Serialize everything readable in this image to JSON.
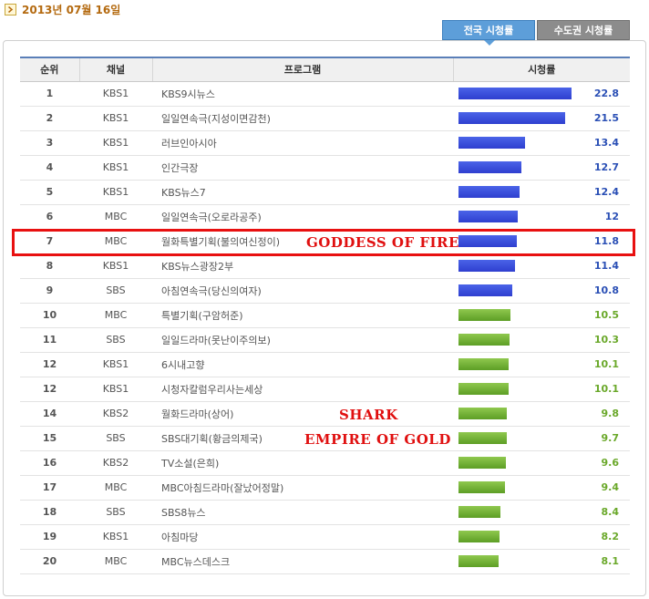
{
  "date": "2013년 07월 16일",
  "tabs": [
    {
      "label": "전국 시청률",
      "active": true
    },
    {
      "label": "수도권 시청률",
      "active": false
    }
  ],
  "columns": {
    "rank": "순위",
    "channel": "채널",
    "program": "프로그램",
    "rating": "시청률"
  },
  "rows": [
    {
      "rank": "1",
      "channel": "KBS1",
      "program": "KBS9시뉴스",
      "rating": "22.8"
    },
    {
      "rank": "2",
      "channel": "KBS1",
      "program": "일일연속극(지성이면감천)",
      "rating": "21.5"
    },
    {
      "rank": "3",
      "channel": "KBS1",
      "program": "러브인아시아",
      "rating": "13.4"
    },
    {
      "rank": "4",
      "channel": "KBS1",
      "program": "인간극장",
      "rating": "12.7"
    },
    {
      "rank": "5",
      "channel": "KBS1",
      "program": "KBS뉴스7",
      "rating": "12.4"
    },
    {
      "rank": "6",
      "channel": "MBC",
      "program": "일일연속극(오로라공주)",
      "rating": "12"
    },
    {
      "rank": "7",
      "channel": "MBC",
      "program": "월화특별기획(불의여신정이)",
      "rating": "11.8"
    },
    {
      "rank": "8",
      "channel": "KBS1",
      "program": "KBS뉴스광장2부",
      "rating": "11.4"
    },
    {
      "rank": "9",
      "channel": "SBS",
      "program": "아침연속극(당신의여자)",
      "rating": "10.8"
    },
    {
      "rank": "10",
      "channel": "MBC",
      "program": "특별기획(구암허준)",
      "rating": "10.5"
    },
    {
      "rank": "11",
      "channel": "SBS",
      "program": "일일드라마(못난이주의보)",
      "rating": "10.3"
    },
    {
      "rank": "12",
      "channel": "KBS1",
      "program": "6시내고향",
      "rating": "10.1"
    },
    {
      "rank": "12",
      "channel": "KBS1",
      "program": "시청자칼럼우리사는세상",
      "rating": "10.1"
    },
    {
      "rank": "14",
      "channel": "KBS2",
      "program": "월화드라마(상어)",
      "rating": "9.8"
    },
    {
      "rank": "15",
      "channel": "SBS",
      "program": "SBS대기획(황금의제국)",
      "rating": "9.7"
    },
    {
      "rank": "16",
      "channel": "KBS2",
      "program": "TV소설(은희)",
      "rating": "9.6"
    },
    {
      "rank": "17",
      "channel": "MBC",
      "program": "MBC아침드라마(잘났어정말)",
      "rating": "9.4"
    },
    {
      "rank": "18",
      "channel": "SBS",
      "program": "SBS8뉴스",
      "rating": "8.4"
    },
    {
      "rank": "19",
      "channel": "KBS1",
      "program": "아침마당",
      "rating": "8.2"
    },
    {
      "rank": "20",
      "channel": "MBC",
      "program": "MBC뉴스데스크",
      "rating": "8.1"
    }
  ],
  "annotations": {
    "goddess": "GODDESS OF FIRE",
    "shark": "SHARK",
    "empire": "EMPIRE OF GOLD"
  },
  "colors": {
    "top_bar": "#2f3fcf",
    "rest_bar": "#5d9e25",
    "highlight": "#e81010"
  }
}
